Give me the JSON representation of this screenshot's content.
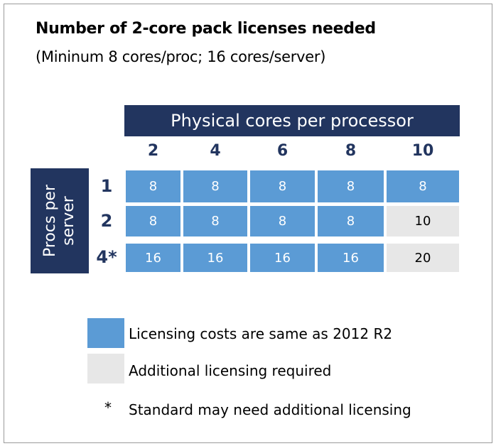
{
  "title": "Number of 2-core pack licenses needed",
  "subtitle": "(Mininum 8 cores/proc; 16 cores/server)",
  "colors": {
    "header": "#22355f",
    "same_cost": "#5b9bd5",
    "additional": "#e7e7e7"
  },
  "chart_data": {
    "type": "table",
    "column_header": "Physical cores per processor",
    "row_header": "Procs per server",
    "columns": [
      "2",
      "4",
      "6",
      "8",
      "10"
    ],
    "rows": [
      "1",
      "2",
      "4*"
    ],
    "values": [
      [
        8,
        8,
        8,
        8,
        8
      ],
      [
        8,
        8,
        8,
        8,
        10
      ],
      [
        16,
        16,
        16,
        16,
        20
      ]
    ],
    "categories": [
      [
        "same",
        "same",
        "same",
        "same",
        "same"
      ],
      [
        "same",
        "same",
        "same",
        "same",
        "additional"
      ],
      [
        "same",
        "same",
        "same",
        "same",
        "additional"
      ]
    ]
  },
  "legend": [
    {
      "key": "same",
      "label": "Licensing costs are same as 2012 R2"
    },
    {
      "key": "additional",
      "label": "Additional licensing required"
    },
    {
      "key": "*",
      "label": "Standard may need additional licensing"
    }
  ]
}
